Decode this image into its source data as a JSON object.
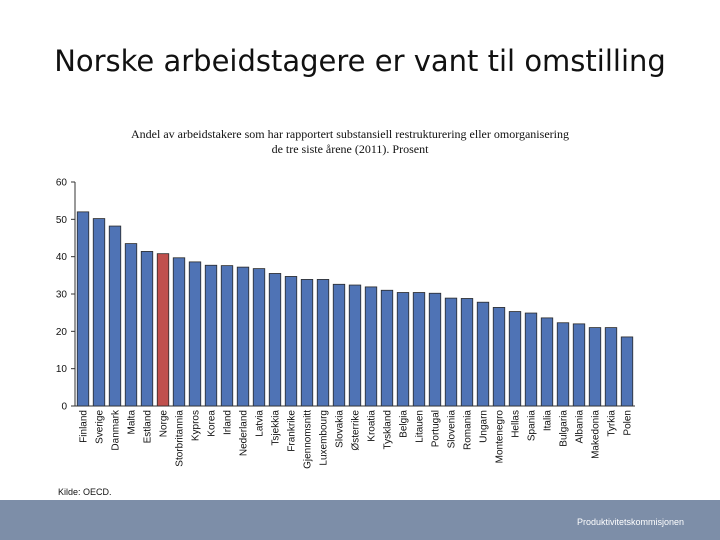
{
  "slide": {
    "title": "Norske arbeidstagere er vant til omstilling",
    "source": "Kilde: OECD.",
    "footer": "Produktivitetskommisjonen"
  },
  "colors": {
    "bar": "#4f73b5",
    "bar_stroke": "#2a2a2a",
    "highlight": "#c0504d",
    "footer_band": "#7d8ea8"
  },
  "chart_data": {
    "type": "bar",
    "title": "Andel av arbeidstakere som har rapportert substansiell restrukturering eller omorganisering",
    "subtitle": "de tre siste årene (2011). Prosent",
    "xlabel": "",
    "ylabel": "",
    "ylim": [
      0,
      60
    ],
    "yticks": [
      0,
      10,
      20,
      30,
      40,
      50,
      60
    ],
    "grid": false,
    "highlight_category": "Norge",
    "categories": [
      "Finland",
      "Sverige",
      "Danmark",
      "Malta",
      "Estland",
      "Norge",
      "Storbritannia",
      "Kypros",
      "Korea",
      "Irland",
      "Nederland",
      "Latvia",
      "Tsjekkia",
      "Frankrike",
      "Gjennomsnitt",
      "Luxembourg",
      "Slovakia",
      "Østerrike",
      "Kroatia",
      "Tyskland",
      "Belgia",
      "Litauen",
      "Portugal",
      "Slovenia",
      "Romania",
      "Ungarn",
      "Montenegro",
      "Hellas",
      "Spania",
      "Italia",
      "Bulgaria",
      "Albania",
      "Makedonia",
      "Tyrkia",
      "Polen"
    ],
    "values": [
      52,
      50.2,
      48.2,
      43.5,
      41.4,
      40.8,
      39.7,
      38.6,
      37.7,
      37.6,
      37.2,
      36.8,
      35.5,
      34.7,
      33.9,
      33.9,
      32.6,
      32.4,
      31.9,
      31,
      30.4,
      30.4,
      30.2,
      28.9,
      28.8,
      27.8,
      26.4,
      25.3,
      24.9,
      23.6,
      22.3,
      22,
      21,
      21,
      18.5
    ]
  }
}
